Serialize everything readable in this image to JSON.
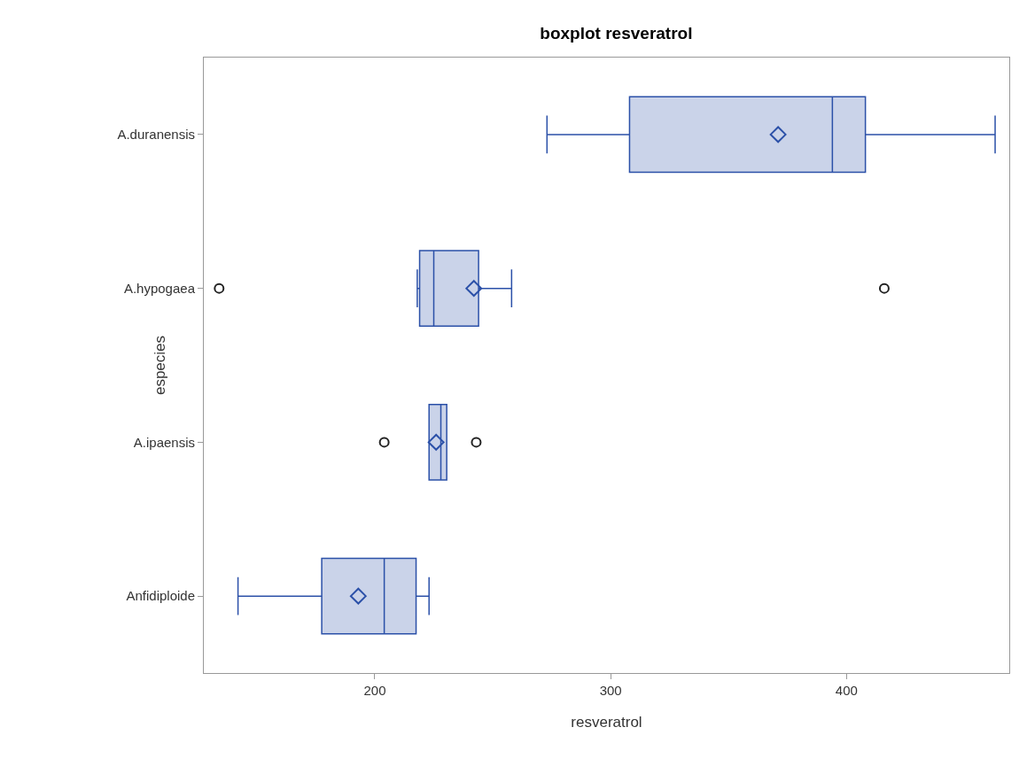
{
  "chart_data": {
    "type": "box",
    "title": "boxplot resveratrol",
    "xlabel": "resveratrol",
    "ylabel": "especies",
    "orientation": "horizontal",
    "categories": [
      "A.duranensis",
      "A.hypogaea",
      "A.ipaensis",
      "Anfidiploide"
    ],
    "xlim": [
      127.5,
      469
    ],
    "xticks": [
      200,
      300,
      400
    ],
    "grid": false,
    "series": [
      {
        "color": "#2b50a8",
        "boxes": [
          {
            "low": 273,
            "q1": 308,
            "median": 394,
            "q3": 408,
            "high": 463,
            "mean": 371
          },
          {
            "low": 218,
            "q1": 219,
            "median": 225,
            "q3": 244,
            "high": 258,
            "mean": 242,
            "outliers": [
              134,
              416
            ]
          },
          {
            "low": 223,
            "q1": 223,
            "median": 228,
            "q3": 230.5,
            "high": 230.5,
            "mean": 226,
            "outliers": [
              204,
              243
            ]
          },
          {
            "low": 142,
            "q1": 177.5,
            "median": 204,
            "q3": 217.5,
            "high": 223,
            "mean": 193
          }
        ]
      }
    ]
  }
}
